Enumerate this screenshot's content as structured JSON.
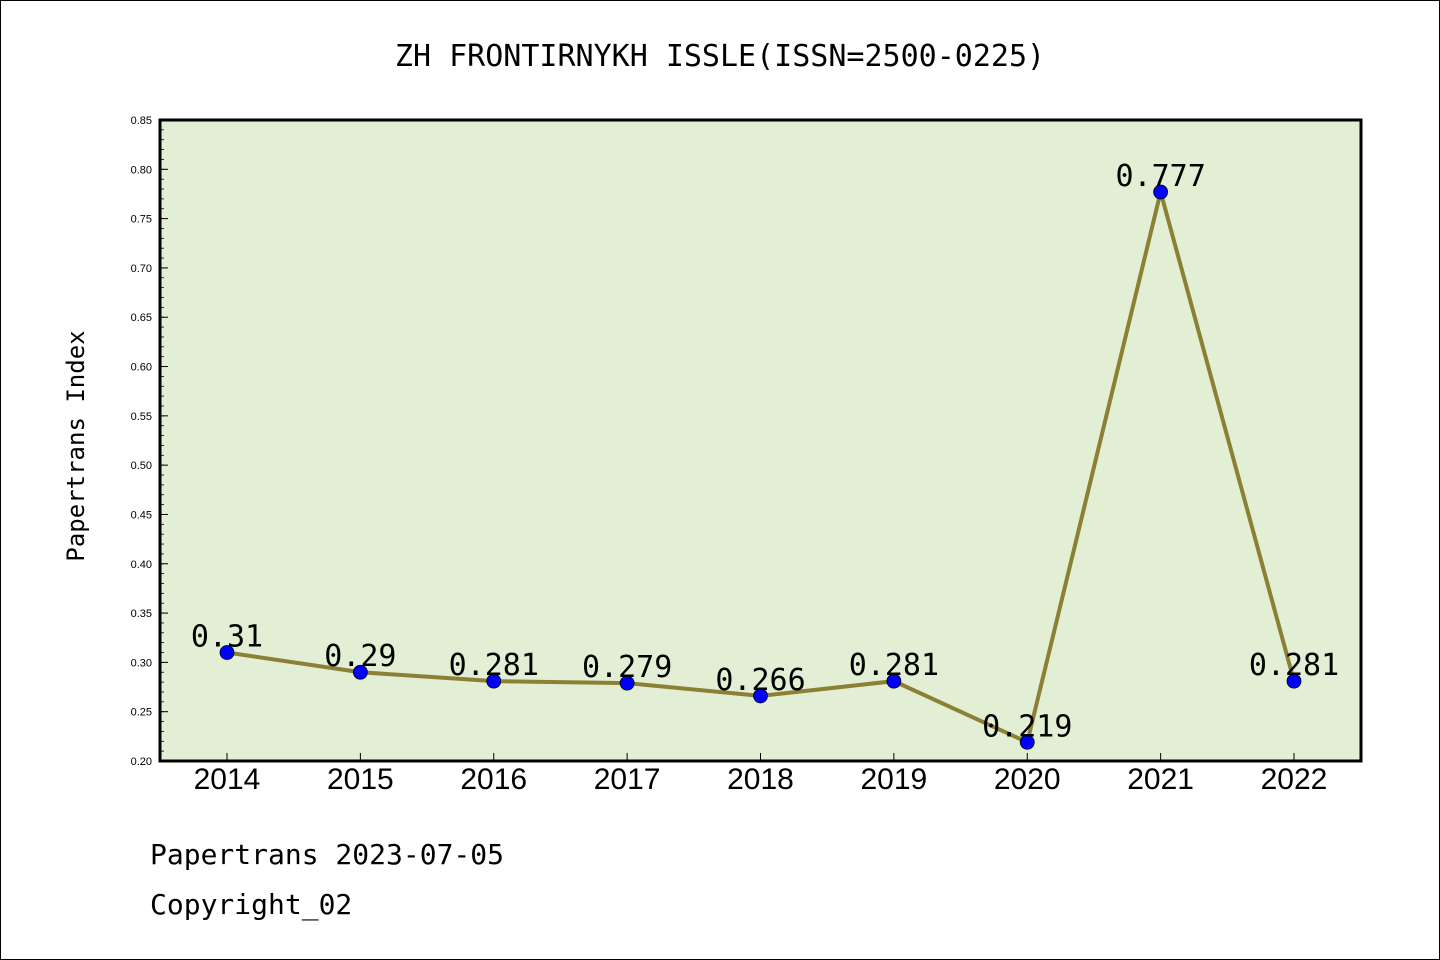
{
  "chart_data": {
    "type": "line",
    "title": "ZH FRONTIRNYKH ISSLE(ISSN=2500-0225)",
    "xlabel": "",
    "ylabel": "Papertrans Index",
    "categories": [
      "2014",
      "2015",
      "2016",
      "2017",
      "2018",
      "2019",
      "2020",
      "2021",
      "2022"
    ],
    "series": [
      {
        "values": [
          0.31,
          0.29,
          0.281,
          0.279,
          0.266,
          0.281,
          0.219,
          0.777,
          0.281
        ],
        "labels": [
          "0.31",
          "0.29",
          "0.281",
          "0.279",
          "0.266",
          "0.281",
          "0.219",
          "0.777",
          "0.281"
        ]
      }
    ],
    "ylim": [
      0.2,
      0.85
    ],
    "yticks": [
      "0.20",
      "0.25",
      "0.30",
      "0.35",
      "0.40",
      "0.45",
      "0.50",
      "0.55",
      "0.60",
      "0.65",
      "0.70",
      "0.75",
      "0.80",
      "0.85"
    ],
    "grid": false,
    "colors": {
      "plot_background": "#e2efd5",
      "line": "#8b8033",
      "marker": "#0000ff"
    }
  },
  "footer": {
    "line1": "Papertrans 2023-07-05",
    "line2": "Copyright_02"
  }
}
